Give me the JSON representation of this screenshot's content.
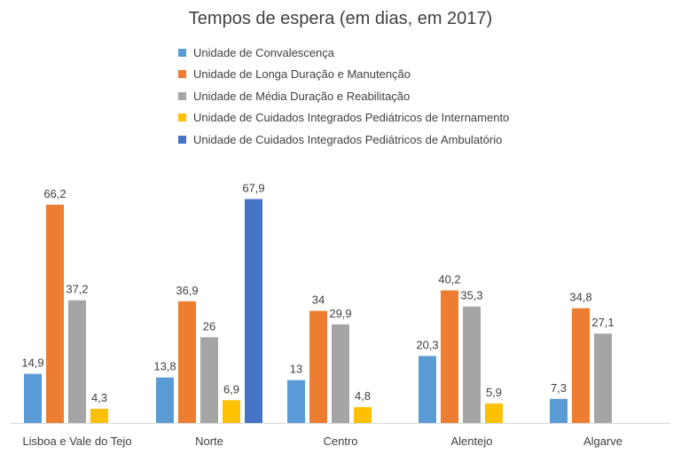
{
  "chart_data": {
    "type": "bar",
    "title": "Tempos de espera (em dias, em 2017)",
    "categories": [
      "Lisboa e Vale do Tejo",
      "Norte",
      "Centro",
      "Alentejo",
      "Algarve"
    ],
    "series": [
      {
        "name": "Unidade de Convalescença",
        "color": "#5B9BD5",
        "values": [
          14.9,
          13.8,
          13,
          20.3,
          7.3
        ]
      },
      {
        "name": "Unidade de Longa Duração e Manutenção",
        "color": "#ED7D31",
        "values": [
          66.2,
          36.9,
          34,
          40.2,
          34.8
        ]
      },
      {
        "name": "Unidade de Média Duração e Reabilitação",
        "color": "#A5A5A5",
        "values": [
          37.2,
          26,
          29.9,
          35.3,
          27.1
        ]
      },
      {
        "name": "Unidade de Cuidados Integrados Pediátricos de Internamento",
        "color": "#FFC000",
        "values": [
          4.3,
          6.9,
          4.8,
          5.9,
          null
        ]
      },
      {
        "name": "Unidade de Cuidados Integrados Pediátricos de Ambulatório",
        "color": "#4472C4",
        "values": [
          null,
          67.9,
          null,
          null,
          null
        ]
      }
    ],
    "data_labels": [
      [
        "14,9",
        "13,8",
        "13",
        "20,3",
        "7,3"
      ],
      [
        "66,2",
        "36,9",
        "34",
        "40,2",
        "34,8"
      ],
      [
        "37,2",
        "26",
        "29,9",
        "35,3",
        "27,1"
      ],
      [
        "4,3",
        "6,9",
        "4,8",
        "5,9",
        ""
      ],
      [
        "",
        "67,9",
        "",
        "",
        ""
      ]
    ],
    "ylim": [
      0,
      70
    ],
    "grid": false,
    "legend_position": "top-left"
  }
}
